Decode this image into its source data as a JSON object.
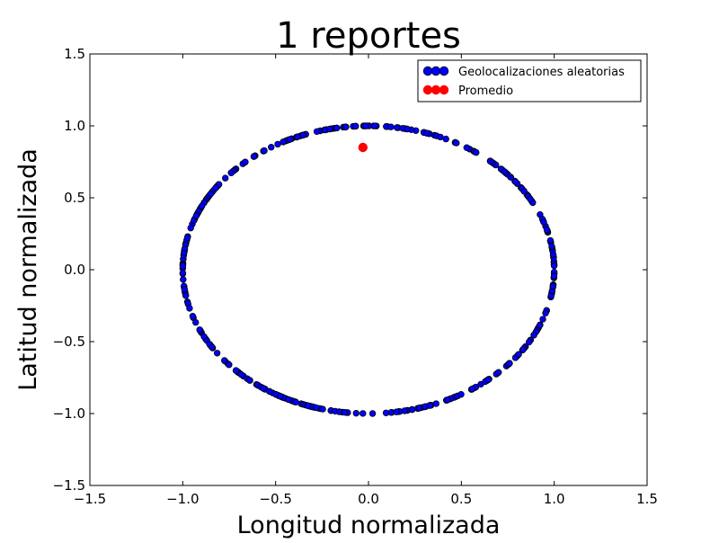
{
  "chart_data": {
    "type": "scatter",
    "title": "1 reportes",
    "xlabel": "Longitud normalizada",
    "ylabel": "Latitud normalizada",
    "xlim": [
      -1.5,
      1.5
    ],
    "ylim": [
      -1.5,
      1.5
    ],
    "xticks": [
      -1.5,
      -1.0,
      -0.5,
      0.0,
      0.5,
      1.0,
      1.5
    ],
    "yticks": [
      -1.5,
      -1.0,
      -0.5,
      0.0,
      0.5,
      1.0,
      1.5
    ],
    "xtick_labels": [
      "−1.5",
      "−1.0",
      "−0.5",
      "0.0",
      "0.5",
      "1.0",
      "1.5"
    ],
    "ytick_labels": [
      "−1.5",
      "−1.0",
      "−0.5",
      "0.0",
      "0.5",
      "1.0",
      "1.5"
    ],
    "grid": false,
    "legend_position": "top-right",
    "series": [
      {
        "name": "Geolocalizaciones aleatorias",
        "color": "#0000ff",
        "edge_color": "#000000",
        "marker": "circle",
        "distribution": "unit circle x^2 + y^2 = 1",
        "point_count": 400
      },
      {
        "name": "Promedio",
        "color": "#ff0000",
        "marker": "circle",
        "points": [
          [
            -0.03,
            0.85
          ]
        ]
      }
    ]
  }
}
